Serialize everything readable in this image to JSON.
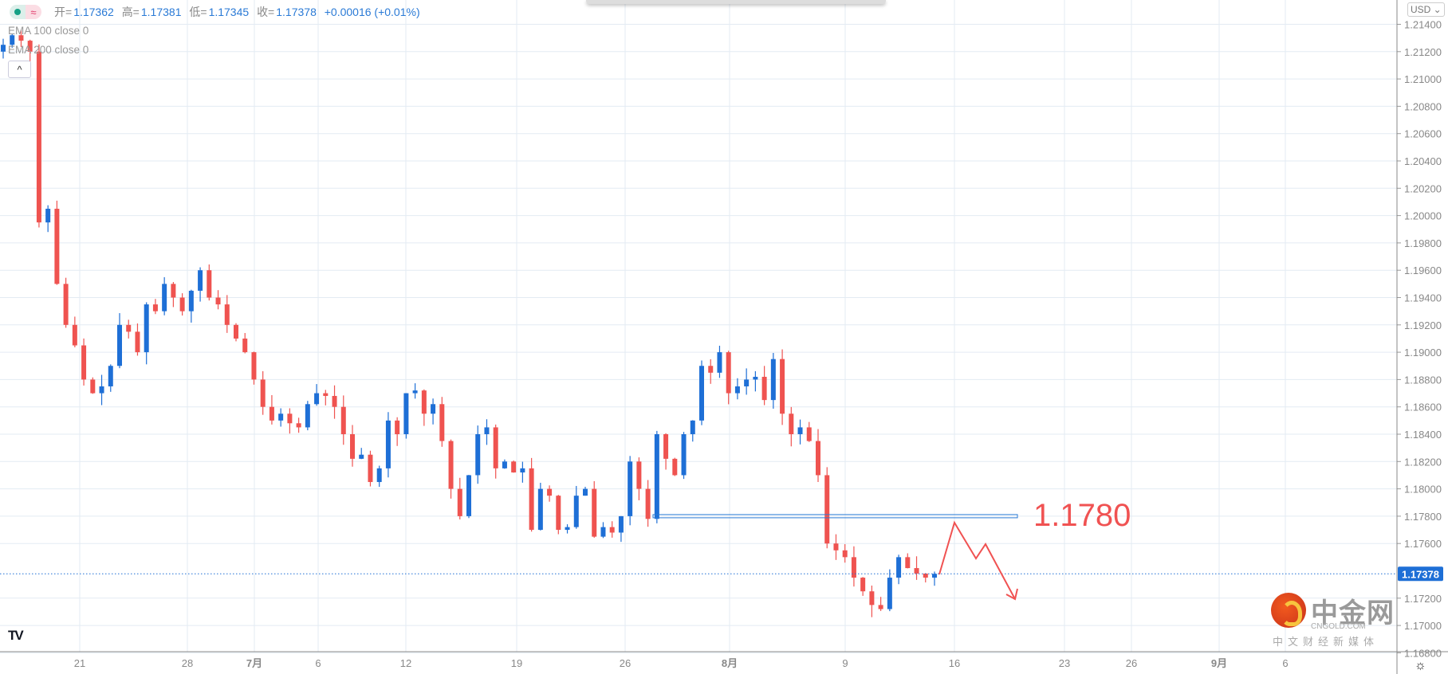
{
  "legend": {
    "toggle_icons": [
      "dot-icon",
      "wave-icon"
    ],
    "toggle_wave": "≈",
    "open_label": "开=",
    "open": "1.17362",
    "high_label": "高=",
    "high": "1.17381",
    "low_label": "低=",
    "low": "1.17345",
    "close_label": "收=",
    "close": "1.17378",
    "change": "+0.00016 (+0.01%)",
    "ema100": "EMA 100 close 0",
    "ema200": "EMA 200 close 0",
    "collapse": "^"
  },
  "currency": "USD ⌄",
  "logo": "TV",
  "annotation": {
    "level_text": "1.1780",
    "level_price": 1.178,
    "color": "#f05252"
  },
  "watermark": {
    "title": "中金网",
    "sub": "CNGOLD.COM",
    "tag": "中文财经新媒体"
  },
  "settings_icon": "☼",
  "chart_data": {
    "type": "candlestick",
    "symbol_colors": {
      "up": "#1e6fd6",
      "down": "#ef5350",
      "grid": "#e3ebf3",
      "last_price": "#1e6fd6"
    },
    "ylim": [
      1.167,
      1.2155
    ],
    "y_ticks": [
      "1.21400",
      "1.21200",
      "1.21000",
      "1.20800",
      "1.20600",
      "1.20400",
      "1.20200",
      "1.20000",
      "1.19800",
      "1.19600",
      "1.19400",
      "1.19200",
      "1.19000",
      "1.18800",
      "1.18600",
      "1.18400",
      "1.18200",
      "1.18000",
      "1.17800",
      "1.17600",
      "1.17200",
      "1.17000",
      "1.16800"
    ],
    "x_ticks": [
      "21",
      "28",
      "7月",
      "6",
      "12",
      "19",
      "26",
      "8月",
      "9",
      "16",
      "23",
      "26",
      "9月",
      "6"
    ],
    "last_price": "1.17378",
    "grid": true,
    "closes": [
      1.2125,
      1.2132,
      1.2128,
      1.212,
      1.1995,
      1.2005,
      1.195,
      1.192,
      1.1905,
      1.188,
      1.187,
      1.1875,
      1.189,
      1.192,
      1.1915,
      1.19,
      1.1935,
      1.193,
      1.195,
      1.194,
      1.193,
      1.1945,
      1.196,
      1.194,
      1.1935,
      1.192,
      1.191,
      1.19,
      1.188,
      1.186,
      1.185,
      1.1855,
      1.1848,
      1.1845,
      1.1862,
      1.187,
      1.1868,
      1.186,
      1.184,
      1.1822,
      1.1825,
      1.1805,
      1.1815,
      1.185,
      1.184,
      1.187,
      1.1872,
      1.1855,
      1.1862,
      1.1835,
      1.18,
      1.178,
      1.181,
      1.184,
      1.1845,
      1.1815,
      1.182,
      1.1812,
      1.1815,
      1.177,
      1.18,
      1.1795,
      1.177,
      1.1772,
      1.1795,
      1.18,
      1.1765,
      1.1772,
      1.1768,
      1.178,
      1.182,
      1.18,
      1.1778,
      1.184,
      1.1822,
      1.181,
      1.184,
      1.185,
      1.189,
      1.1885,
      1.19,
      1.187,
      1.1875,
      1.188,
      1.1882,
      1.1865,
      1.1895,
      1.1855,
      1.184,
      1.1845,
      1.1835,
      1.181,
      1.176,
      1.1755,
      1.175,
      1.1735,
      1.1725,
      1.1715,
      1.1712,
      1.1735,
      1.175,
      1.1742,
      1.1738,
      1.1735,
      1.17378
    ]
  }
}
